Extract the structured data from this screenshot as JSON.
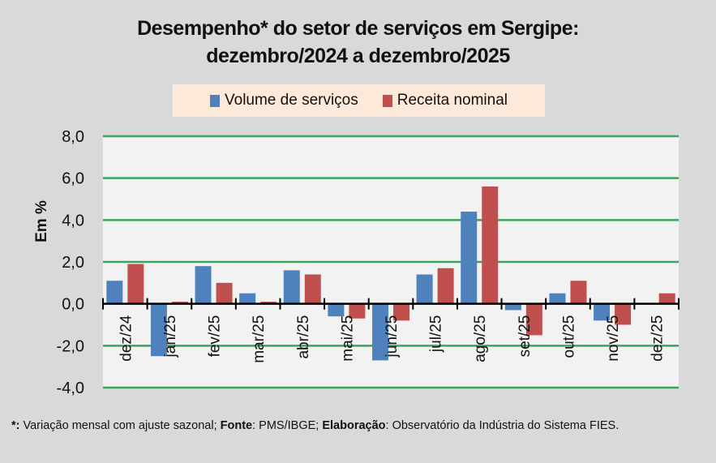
{
  "title": {
    "line1": "Desempenho* do setor de serviços em Sergipe:",
    "line2": "dezembro/2024 a dezembro/2025"
  },
  "legend": {
    "items": [
      {
        "label": "Volume de serviços",
        "color": "#4f81bd"
      },
      {
        "label": "Receita nominal",
        "color": "#c0504d"
      }
    ]
  },
  "footnote": {
    "marker": "*:",
    "text1": " Variação mensal com ajuste sazonal; ",
    "fonte_label": "Fonte",
    "text2": ": PMS/IBGE; ",
    "elaboracao_label": "Elaboração",
    "text3": ": Observatório da Indústria do Sistema FIES."
  },
  "colors": {
    "background": "#d9d9d9",
    "plot_background": "#f2f2f2",
    "gridline": "#3aa55c",
    "axis": "#000000"
  },
  "chart_data": {
    "type": "bar",
    "title": "Desempenho* do setor de serviços em Sergipe: dezembro/2024 a dezembro/2025",
    "xlabel": "",
    "ylabel": "Em %",
    "ylim": [
      -4,
      8
    ],
    "yticks": [
      -4,
      -2,
      0,
      2,
      4,
      6,
      8
    ],
    "ytick_labels": [
      "-4,0",
      "-2,0",
      "0,0",
      "2,0",
      "4,0",
      "6,0",
      "8,0"
    ],
    "grid": true,
    "legend_position": "top",
    "categories": [
      "dez/24",
      "jan/25",
      "fev/25",
      "mar/25",
      "abr/25",
      "mai/25",
      "jun/25",
      "jul/25",
      "ago/25",
      "set/25",
      "out/25",
      "nov/25",
      "dez/25"
    ],
    "series": [
      {
        "name": "Volume de serviços",
        "color": "#4f81bd",
        "values": [
          1.1,
          -2.5,
          1.8,
          0.5,
          1.6,
          -0.6,
          -2.7,
          1.4,
          4.4,
          -0.3,
          0.5,
          -0.8,
          0.0
        ]
      },
      {
        "name": "Receita nominal",
        "color": "#c0504d",
        "values": [
          1.9,
          0.1,
          1.0,
          0.1,
          1.4,
          -0.7,
          -0.8,
          1.7,
          5.6,
          -1.5,
          1.1,
          -1.0,
          0.5
        ]
      }
    ]
  }
}
